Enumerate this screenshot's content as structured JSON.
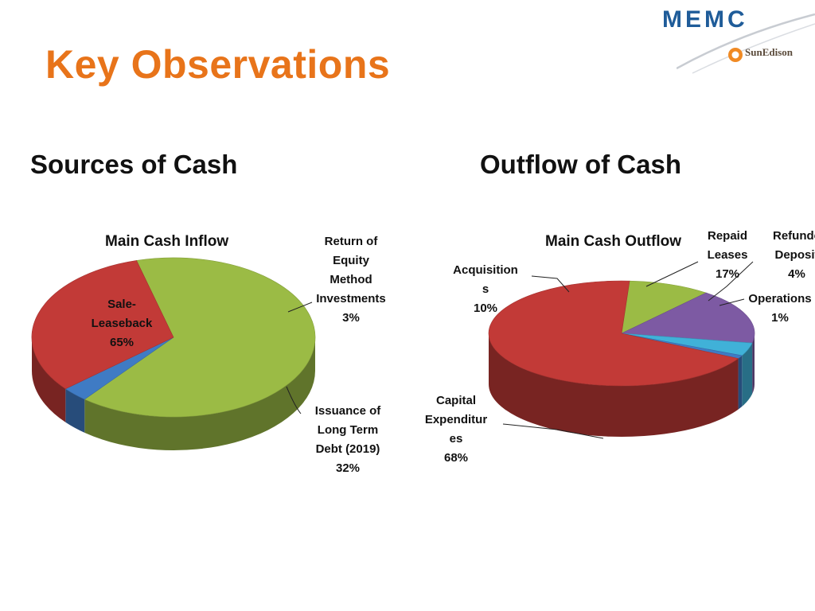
{
  "slide": {
    "title": "Key Observations",
    "sources_heading": "Sources of Cash",
    "outflow_heading": "Outflow of Cash"
  },
  "logos": {
    "memc": "MEMC",
    "sunedison": "SunEdison"
  },
  "colors": {
    "title": "#E8741A",
    "green": "#9BBB45",
    "red": "#C23A37",
    "blue": "#3F7BC4",
    "purple": "#7D5AA3",
    "cyan": "#40B1D8"
  },
  "chart_data": [
    {
      "type": "pie",
      "title": "Main Cash Inflow",
      "slices": [
        {
          "label_lines": [
            "Sale-",
            "Leaseback",
            "65%"
          ],
          "value": 65,
          "color": "#9BBB45"
        },
        {
          "label_lines": [
            "Return of",
            "Equity",
            "Method",
            "Investments",
            "3%"
          ],
          "value": 3,
          "color": "#3F7BC4"
        },
        {
          "label_lines": [
            "Issuance of",
            "Long Term",
            "Debt (2019)",
            "32%"
          ],
          "value": 32,
          "color": "#C23A37"
        }
      ]
    },
    {
      "type": "pie",
      "title": "Main Cash Outflow",
      "slices": [
        {
          "label_lines": [
            "Acquisition",
            "s",
            "10%"
          ],
          "value": 10,
          "color": "#9BBB45"
        },
        {
          "label_lines": [
            "Repaid",
            "Leases",
            "17%"
          ],
          "value": 17,
          "color": "#7D5AA3"
        },
        {
          "label_lines": [
            "Refunde",
            "Deposit",
            "4%"
          ],
          "value": 4,
          "color": "#40B1D8"
        },
        {
          "label_lines": [
            "Operations",
            "1%"
          ],
          "value": 1,
          "color": "#3F7BC4"
        },
        {
          "label_lines": [
            "Capital",
            "Expenditur",
            "es",
            "68%"
          ],
          "value": 68,
          "color": "#C23A37"
        }
      ]
    }
  ]
}
